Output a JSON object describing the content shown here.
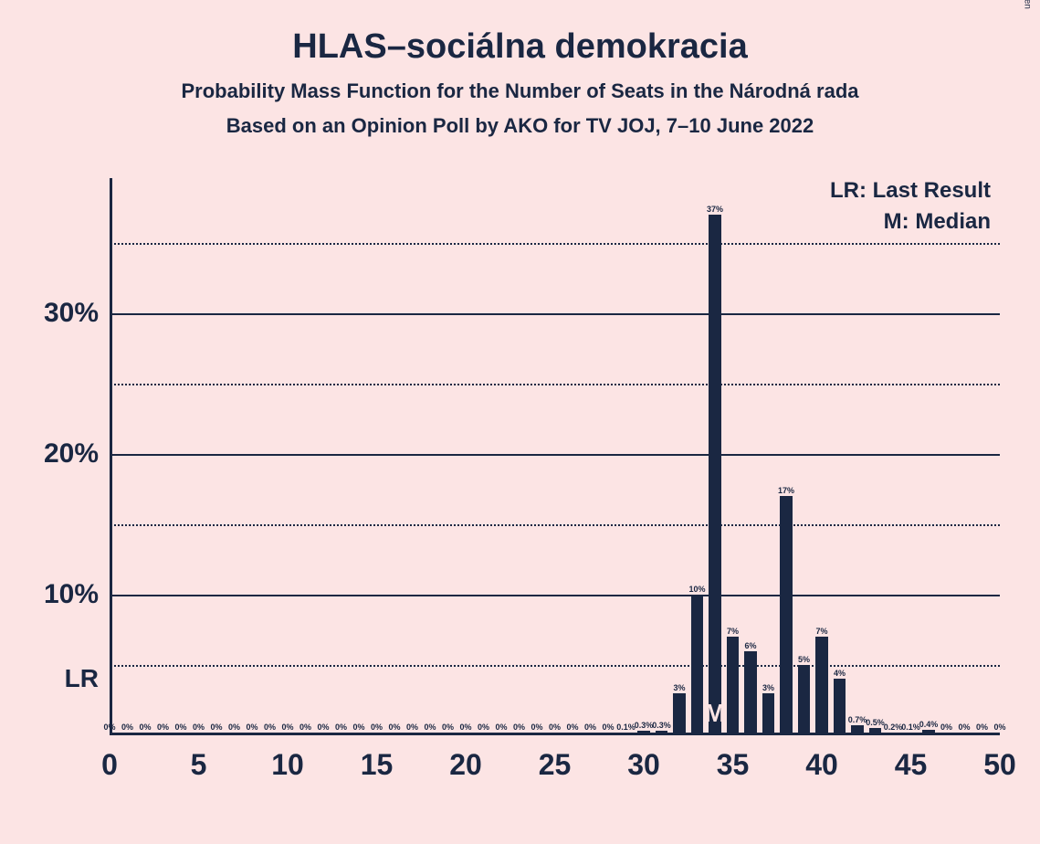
{
  "title": "HLAS–sociálna demokracia",
  "subtitle1": "Probability Mass Function for the Number of Seats in the Národná rada",
  "subtitle2": "Based on an Opinion Poll by AKO for TV JOJ, 7–10 June 2022",
  "legend_lr": "LR: Last Result",
  "legend_m": "M: Median",
  "copyright": "© 2022 Filip van Laenen",
  "chart": {
    "type": "bar",
    "x_min": 0,
    "x_max": 50,
    "y_min": 0,
    "y_max": 37,
    "y_ticks_solid": [
      10,
      20,
      30
    ],
    "y_ticks_dotted": [
      5,
      15,
      25,
      35
    ],
    "x_ticks": [
      0,
      5,
      10,
      15,
      20,
      25,
      30,
      35,
      40,
      45,
      50
    ],
    "bar_color": "#1a2742",
    "background_color": "#fce4e4",
    "lr_position": 0,
    "m_position": 34,
    "lr_text": "LR",
    "m_text": "M",
    "bars": [
      {
        "x": 0,
        "v": 0,
        "label": "0%"
      },
      {
        "x": 1,
        "v": 0,
        "label": "0%"
      },
      {
        "x": 2,
        "v": 0,
        "label": "0%"
      },
      {
        "x": 3,
        "v": 0,
        "label": "0%"
      },
      {
        "x": 4,
        "v": 0,
        "label": "0%"
      },
      {
        "x": 5,
        "v": 0,
        "label": "0%"
      },
      {
        "x": 6,
        "v": 0,
        "label": "0%"
      },
      {
        "x": 7,
        "v": 0,
        "label": "0%"
      },
      {
        "x": 8,
        "v": 0,
        "label": "0%"
      },
      {
        "x": 9,
        "v": 0,
        "label": "0%"
      },
      {
        "x": 10,
        "v": 0,
        "label": "0%"
      },
      {
        "x": 11,
        "v": 0,
        "label": "0%"
      },
      {
        "x": 12,
        "v": 0,
        "label": "0%"
      },
      {
        "x": 13,
        "v": 0,
        "label": "0%"
      },
      {
        "x": 14,
        "v": 0,
        "label": "0%"
      },
      {
        "x": 15,
        "v": 0,
        "label": "0%"
      },
      {
        "x": 16,
        "v": 0,
        "label": "0%"
      },
      {
        "x": 17,
        "v": 0,
        "label": "0%"
      },
      {
        "x": 18,
        "v": 0,
        "label": "0%"
      },
      {
        "x": 19,
        "v": 0,
        "label": "0%"
      },
      {
        "x": 20,
        "v": 0,
        "label": "0%"
      },
      {
        "x": 21,
        "v": 0,
        "label": "0%"
      },
      {
        "x": 22,
        "v": 0,
        "label": "0%"
      },
      {
        "x": 23,
        "v": 0,
        "label": "0%"
      },
      {
        "x": 24,
        "v": 0,
        "label": "0%"
      },
      {
        "x": 25,
        "v": 0,
        "label": "0%"
      },
      {
        "x": 26,
        "v": 0,
        "label": "0%"
      },
      {
        "x": 27,
        "v": 0,
        "label": "0%"
      },
      {
        "x": 28,
        "v": 0,
        "label": "0%"
      },
      {
        "x": 29,
        "v": 0.1,
        "label": "0.1%"
      },
      {
        "x": 30,
        "v": 0.3,
        "label": "0.3%"
      },
      {
        "x": 31,
        "v": 0.3,
        "label": "0.3%"
      },
      {
        "x": 32,
        "v": 3,
        "label": "3%"
      },
      {
        "x": 33,
        "v": 10,
        "label": "10%"
      },
      {
        "x": 34,
        "v": 37,
        "label": "37%"
      },
      {
        "x": 35,
        "v": 7,
        "label": "7%"
      },
      {
        "x": 36,
        "v": 6,
        "label": "6%"
      },
      {
        "x": 37,
        "v": 3,
        "label": "3%"
      },
      {
        "x": 38,
        "v": 17,
        "label": "17%"
      },
      {
        "x": 39,
        "v": 5,
        "label": "5%"
      },
      {
        "x": 40,
        "v": 7,
        "label": "7%"
      },
      {
        "x": 41,
        "v": 4,
        "label": "4%"
      },
      {
        "x": 42,
        "v": 0.7,
        "label": "0.7%"
      },
      {
        "x": 43,
        "v": 0.5,
        "label": "0.5%"
      },
      {
        "x": 44,
        "v": 0.2,
        "label": "0.2%"
      },
      {
        "x": 45,
        "v": 0.1,
        "label": "0.1%"
      },
      {
        "x": 46,
        "v": 0.4,
        "label": "0.4%"
      },
      {
        "x": 47,
        "v": 0,
        "label": "0%"
      },
      {
        "x": 48,
        "v": 0,
        "label": "0%"
      },
      {
        "x": 49,
        "v": 0,
        "label": "0%"
      },
      {
        "x": 50,
        "v": 0,
        "label": "0%"
      }
    ]
  }
}
